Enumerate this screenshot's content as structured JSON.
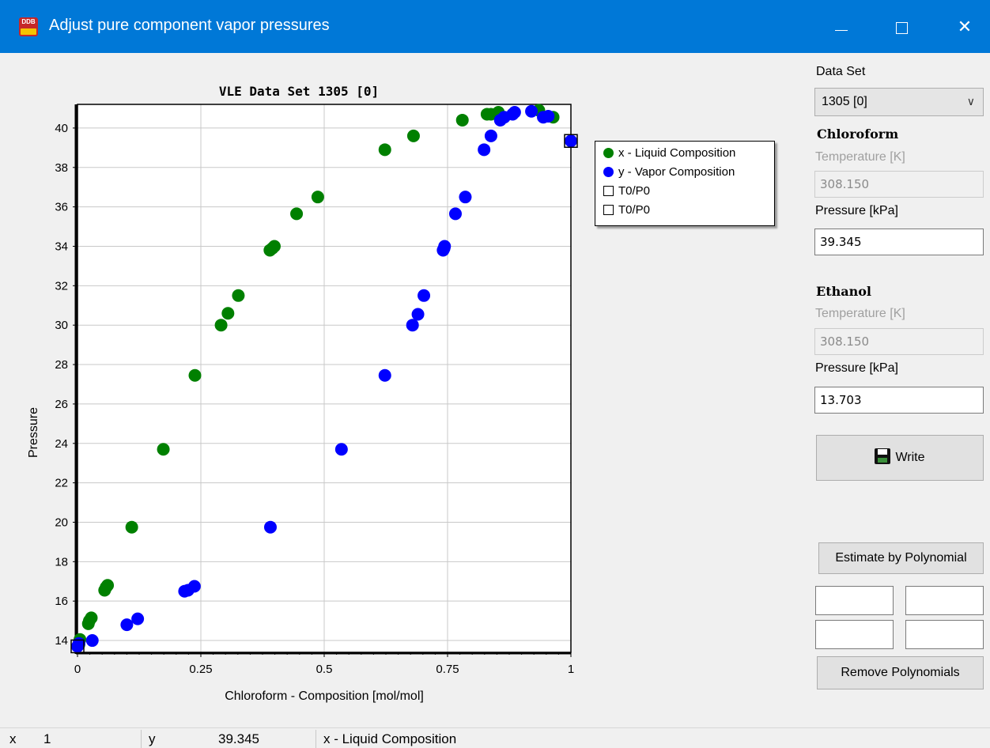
{
  "window": {
    "title": "Adjust pure component vapor pressures",
    "app_icon_text": "DDB",
    "icons": [
      "minimize-icon",
      "maximize-icon",
      "close-icon"
    ]
  },
  "chart_data": {
    "type": "scatter",
    "title": "VLE Data Set 1305 [0]",
    "xlabel": "Chloroform - Composition [mol/mol]",
    "ylabel": "Pressure",
    "xlim": [
      0,
      1
    ],
    "ylim": [
      13.4,
      41.2
    ],
    "x_ticks": [
      0,
      0.25,
      0.5,
      0.75,
      1
    ],
    "x_tick_labels": [
      "0",
      "0.25",
      "0.5",
      "0.75",
      "1"
    ],
    "y_ticks": [
      14,
      16,
      18,
      20,
      22,
      24,
      26,
      28,
      30,
      32,
      34,
      36,
      38,
      40
    ],
    "y_tick_labels": [
      "14",
      "16",
      "18",
      "20",
      "22",
      "24",
      "26",
      "28",
      "30",
      "32",
      "34",
      "36",
      "38",
      "40"
    ],
    "grid": true,
    "legend_position": "right",
    "series": [
      {
        "name": "x - Liquid Composition",
        "color": "#008000",
        "marker": "circle",
        "points": [
          [
            0.003,
            13.8
          ],
          [
            0.005,
            14.05
          ],
          [
            0.022,
            14.85
          ],
          [
            0.024,
            15.0
          ],
          [
            0.028,
            15.15
          ],
          [
            0.055,
            16.55
          ],
          [
            0.058,
            16.7
          ],
          [
            0.061,
            16.8
          ],
          [
            0.11,
            19.75
          ],
          [
            0.174,
            23.7
          ],
          [
            0.238,
            27.45
          ],
          [
            0.291,
            30.0
          ],
          [
            0.305,
            30.6
          ],
          [
            0.326,
            31.5
          ],
          [
            0.39,
            33.8
          ],
          [
            0.395,
            33.9
          ],
          [
            0.399,
            34.0
          ],
          [
            0.444,
            35.65
          ],
          [
            0.487,
            36.5
          ],
          [
            0.623,
            38.9
          ],
          [
            0.681,
            39.6
          ],
          [
            0.78,
            40.4
          ],
          [
            0.83,
            40.7
          ],
          [
            0.838,
            40.7
          ],
          [
            0.853,
            40.8
          ],
          [
            0.935,
            40.9
          ],
          [
            0.964,
            40.55
          ]
        ]
      },
      {
        "name": "y - Vapor Composition",
        "color": "#0000ff",
        "marker": "circle",
        "points": [
          [
            0.0,
            13.7
          ],
          [
            0.003,
            13.85
          ],
          [
            0.03,
            14.0
          ],
          [
            0.1,
            14.8
          ],
          [
            0.122,
            15.1
          ],
          [
            0.217,
            16.5
          ],
          [
            0.224,
            16.55
          ],
          [
            0.237,
            16.75
          ],
          [
            0.391,
            19.75
          ],
          [
            0.535,
            23.7
          ],
          [
            0.623,
            27.45
          ],
          [
            0.679,
            30.0
          ],
          [
            0.69,
            30.55
          ],
          [
            0.702,
            31.5
          ],
          [
            0.741,
            33.8
          ],
          [
            0.743,
            33.9
          ],
          [
            0.744,
            34.0
          ],
          [
            0.766,
            35.65
          ],
          [
            0.786,
            36.5
          ],
          [
            0.824,
            38.9
          ],
          [
            0.838,
            39.6
          ],
          [
            0.857,
            40.4
          ],
          [
            0.865,
            40.55
          ],
          [
            0.882,
            40.7
          ],
          [
            0.886,
            40.8
          ],
          [
            0.92,
            40.85
          ],
          [
            0.944,
            40.55
          ],
          [
            0.954,
            40.6
          ],
          [
            1.0,
            39.345
          ]
        ]
      },
      {
        "name": "T0/P0",
        "marker": "square",
        "points": [
          [
            0,
            13.703
          ]
        ]
      },
      {
        "name": "T0/P0",
        "marker": "square",
        "points": [
          [
            1,
            39.345
          ]
        ]
      }
    ]
  },
  "panel": {
    "dataset_label": "Data Set",
    "dataset_value": "1305 [0]",
    "component1": {
      "name": "Chloroform",
      "temp_label": "Temperature [K]",
      "temp_value": "308.150",
      "pressure_label": "Pressure [kPa]",
      "pressure_value": "39.345"
    },
    "component2": {
      "name": "Ethanol",
      "temp_label": "Temperature [K]",
      "temp_value": "308.150",
      "pressure_label": "Pressure [kPa]",
      "pressure_value": "13.703"
    },
    "write_label": "Write",
    "estimate_label": "Estimate by Polynomial",
    "remove_label": "Remove Polynomials"
  },
  "status": {
    "x_label": "x",
    "x_value": "1",
    "y_label": "y",
    "y_value": "39.345",
    "series_label": "x - Liquid Composition"
  }
}
